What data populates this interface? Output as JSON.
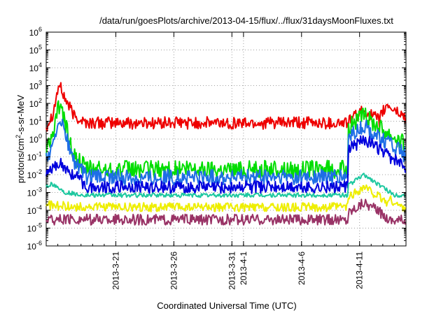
{
  "chart_data": {
    "type": "line",
    "title": "/data/run/goesPlots/archive/2013-04-15/flux/../flux/31daysMoonFluxes.txt",
    "xlabel": "Coordinated Universal Time (UTC)",
    "ylabel_parts": [
      "protons/cm",
      "2",
      "-s-sr-MeV"
    ],
    "x_range": [
      "2013-03-15",
      "2013-04-15"
    ],
    "x_ticks": [
      "2013-3-21",
      "2013-3-26",
      "2013-3-31",
      "2013-4-1",
      "2013-4-6",
      "2013-4-11"
    ],
    "y_scale": "log",
    "y_range": [
      1e-06,
      1000000.0
    ],
    "y_ticks": [
      {
        "base": "10",
        "exp": "-6"
      },
      {
        "base": "10",
        "exp": "-5"
      },
      {
        "base": "10",
        "exp": "-4"
      },
      {
        "base": "10",
        "exp": "-3"
      },
      {
        "base": "10",
        "exp": "-2"
      },
      {
        "base": "10",
        "exp": "-1"
      },
      {
        "base": "10",
        "exp": "0"
      },
      {
        "base": "10",
        "exp": "1"
      },
      {
        "base": "10",
        "exp": "2"
      },
      {
        "base": "10",
        "exp": "3"
      },
      {
        "base": "10",
        "exp": "4"
      },
      {
        "base": "10",
        "exp": "5"
      },
      {
        "base": "10",
        "exp": "6"
      }
    ],
    "grid": true,
    "legend": "none",
    "series": [
      {
        "color": "#ee0000",
        "base": 5,
        "noise": 0.35,
        "points": [
          [
            -0.5,
            3
          ],
          [
            0,
            5
          ],
          [
            0.6,
            30
          ],
          [
            1.1,
            1200
          ],
          [
            1.6,
            200
          ],
          [
            2.4,
            20
          ],
          [
            3.5,
            8
          ],
          [
            31,
            8
          ]
        ],
        "events": [
          [
            18.2,
            18.8,
            0.004
          ],
          [
            21.5,
            22.2,
            0.8
          ],
          [
            26.0,
            27.4,
            40
          ],
          [
            28.8,
            29.4,
            80
          ],
          [
            29.8,
            30.6,
            2
          ]
        ]
      },
      {
        "color": "#00dd00",
        "base": 0.02,
        "noise": 0.5,
        "points": [
          [
            -0.5,
            0.05
          ],
          [
            0.6,
            2
          ],
          [
            1.1,
            80
          ],
          [
            1.6,
            10
          ],
          [
            2.4,
            0.1
          ],
          [
            3.5,
            0.02
          ],
          [
            31,
            0.02
          ]
        ],
        "events": [
          [
            26.0,
            27.4,
            20
          ],
          [
            28.8,
            29.4,
            2
          ]
        ]
      },
      {
        "color": "#1e6ee6",
        "base": 0.007,
        "noise": 0.45,
        "points": [
          [
            -0.5,
            0.03
          ],
          [
            0.6,
            0.3
          ],
          [
            1.1,
            20
          ],
          [
            1.6,
            2
          ],
          [
            2.4,
            0.05
          ],
          [
            3.5,
            0.007
          ],
          [
            31,
            0.007
          ]
        ],
        "events": [
          [
            26.0,
            27.4,
            5
          ],
          [
            28.8,
            29.4,
            0.5
          ]
        ]
      },
      {
        "color": "#0000dd",
        "base": 0.0018,
        "noise": 0.35,
        "points": [
          [
            -0.5,
            0.004
          ],
          [
            0.6,
            0.02
          ],
          [
            1.1,
            0.05
          ],
          [
            1.6,
            0.02
          ],
          [
            2.4,
            0.01
          ],
          [
            3.5,
            0.002
          ],
          [
            31,
            0.002
          ]
        ],
        "events": [
          [
            26.0,
            27.4,
            1
          ],
          [
            28.8,
            29.4,
            0.1
          ]
        ]
      },
      {
        "color": "#1ec8a0",
        "base": 0.0007,
        "noise": 0.12,
        "points": [
          [
            -0.5,
            0.002
          ],
          [
            0.6,
            0.003
          ],
          [
            1.6,
            0.001
          ],
          [
            3.5,
            0.0007
          ],
          [
            31,
            0.0007
          ]
        ],
        "events": [
          [
            26.0,
            27.4,
            0.01
          ]
        ]
      },
      {
        "color": "#eeee00",
        "base": 0.00015,
        "noise": 0.25,
        "points": [
          [
            -0.5,
            0.0002
          ],
          [
            3.5,
            0.00015
          ],
          [
            31,
            0.00015
          ]
        ],
        "events": [
          [
            26.0,
            27.4,
            0.002
          ],
          [
            29.0,
            29.6,
            0.0004
          ]
        ]
      },
      {
        "color": "#993366",
        "base": 3e-05,
        "noise": 0.3,
        "points": [
          [
            -0.5,
            3e-05
          ],
          [
            31,
            3e-05
          ]
        ],
        "events": [
          [
            26.0,
            27.4,
            0.0003
          ]
        ]
      }
    ]
  }
}
